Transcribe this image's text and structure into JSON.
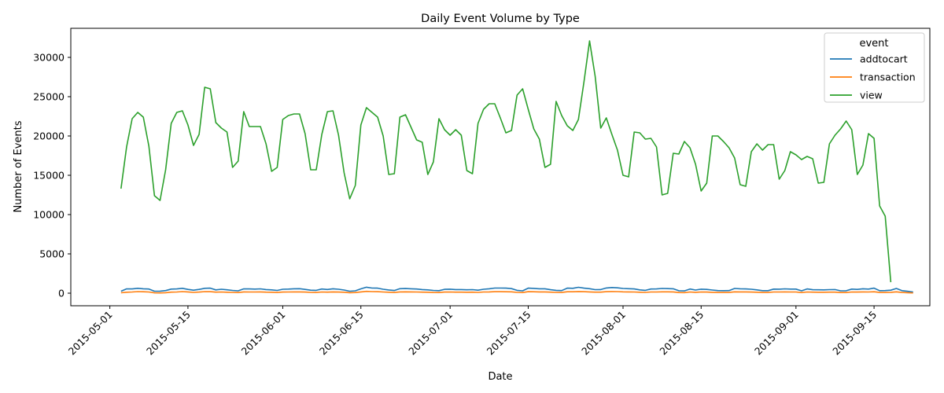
{
  "chart_data": {
    "type": "line",
    "title": "Daily Event Volume by Type",
    "xlabel": "Date",
    "ylabel": "Number of Events",
    "x_range": [
      "2015-04-24",
      "2015-09-25"
    ],
    "ylim": [
      -1600,
      33700
    ],
    "x_ticks": [
      "2015-05-01",
      "2015-05-15",
      "2015-06-01",
      "2015-06-15",
      "2015-07-01",
      "2015-07-15",
      "2015-08-01",
      "2015-08-15",
      "2015-09-01",
      "2015-09-15"
    ],
    "y_ticks": [
      0,
      5000,
      10000,
      15000,
      20000,
      25000,
      30000
    ],
    "grid": false,
    "legend": {
      "title": "event",
      "position": "top-right"
    },
    "x_start": "2015-05-03",
    "series": [
      {
        "name": "addtocart",
        "color": "#1f77b4",
        "values": [
          250,
          550,
          540,
          620,
          560,
          530,
          250,
          260,
          330,
          520,
          540,
          620,
          480,
          380,
          480,
          620,
          640,
          420,
          500,
          430,
          350,
          300,
          550,
          540,
          520,
          550,
          460,
          420,
          350,
          500,
          520,
          560,
          570,
          480,
          380,
          360,
          530,
          470,
          560,
          500,
          400,
          250,
          300,
          550,
          760,
          650,
          640,
          500,
          410,
          340,
          570,
          590,
          560,
          530,
          460,
          420,
          350,
          320,
          490,
          510,
          460,
          460,
          430,
          450,
          380,
          500,
          560,
          650,
          650,
          640,
          580,
          360,
          300,
          640,
          610,
          560,
          560,
          440,
          360,
          330,
          640,
          620,
          750,
          640,
          570,
          450,
          460,
          660,
          720,
          680,
          600,
          570,
          540,
          420,
          360,
          530,
          540,
          600,
          580,
          560,
          310,
          290,
          530,
          400,
          510,
          480,
          400,
          330,
          320,
          330,
          600,
          560,
          540,
          500,
          420,
          320,
          320,
          520,
          510,
          550,
          520,
          520,
          300,
          540,
          440,
          430,
          420,
          450,
          460,
          300,
          310,
          520,
          480,
          560,
          520,
          640,
          320,
          330,
          380,
          600,
          320,
          240,
          150
        ]
      },
      {
        "name": "transaction",
        "color": "#ff7f0e",
        "values": [
          50,
          120,
          150,
          200,
          180,
          150,
          40,
          30,
          60,
          130,
          150,
          200,
          160,
          100,
          140,
          200,
          190,
          130,
          150,
          120,
          100,
          80,
          160,
          150,
          150,
          160,
          130,
          120,
          90,
          140,
          150,
          160,
          160,
          140,
          100,
          90,
          150,
          130,
          160,
          140,
          120,
          60,
          80,
          160,
          230,
          200,
          190,
          150,
          120,
          90,
          160,
          170,
          160,
          150,
          130,
          120,
          90,
          80,
          140,
          150,
          130,
          130,
          120,
          130,
          100,
          150,
          160,
          190,
          190,
          180,
          170,
          100,
          80,
          190,
          180,
          160,
          160,
          130,
          100,
          90,
          180,
          180,
          210,
          190,
          160,
          130,
          130,
          190,
          210,
          200,
          170,
          160,
          150,
          120,
          100,
          150,
          150,
          170,
          170,
          160,
          80,
          70,
          150,
          110,
          150,
          140,
          110,
          90,
          90,
          90,
          170,
          160,
          160,
          140,
          120,
          90,
          90,
          150,
          150,
          160,
          150,
          150,
          80,
          150,
          130,
          120,
          120,
          130,
          130,
          80,
          80,
          150,
          140,
          160,
          150,
          180,
          90,
          90,
          110,
          170,
          90,
          60,
          30
        ]
      },
      {
        "name": "view",
        "color": "#2ca02c",
        "values": [
          13300,
          18600,
          22200,
          23000,
          22400,
          18700,
          12400,
          11800,
          15700,
          21600,
          23000,
          23200,
          21400,
          18800,
          20200,
          26200,
          26000,
          21700,
          21000,
          20500,
          16000,
          16800,
          23100,
          21200,
          21200,
          21200,
          19000,
          15500,
          16000,
          22100,
          22600,
          22800,
          22800,
          20300,
          15700,
          15700,
          20200,
          23100,
          23200,
          20100,
          15300,
          12000,
          13700,
          21400,
          23600,
          23000,
          22400,
          20000,
          15100,
          15200,
          22400,
          22700,
          21100,
          19500,
          19200,
          15100,
          16700,
          22200,
          20800,
          20100,
          20800,
          20100,
          15600,
          15200,
          21600,
          23400,
          24100,
          24100,
          22300,
          20400,
          20700,
          25200,
          26000,
          23400,
          20900,
          19600,
          16000,
          16400,
          24400,
          22600,
          21300,
          20700,
          22100,
          26900,
          32100,
          27600,
          21000,
          22300,
          20200,
          18200,
          15000,
          14800,
          20500,
          20400,
          19600,
          19700,
          18600,
          12500,
          12700,
          17800,
          17700,
          19300,
          18500,
          16400,
          13000,
          14000,
          20000,
          20000,
          19300,
          18500,
          17200,
          13800,
          13600,
          18000,
          19000,
          18200,
          18900,
          18900,
          14500,
          15600,
          18000,
          17600,
          17000,
          17400,
          17100,
          14000,
          14100,
          19000,
          20100,
          20900,
          21900,
          20800,
          15100,
          16300,
          20300,
          19700,
          11100,
          9800,
          1400
        ]
      }
    ]
  }
}
